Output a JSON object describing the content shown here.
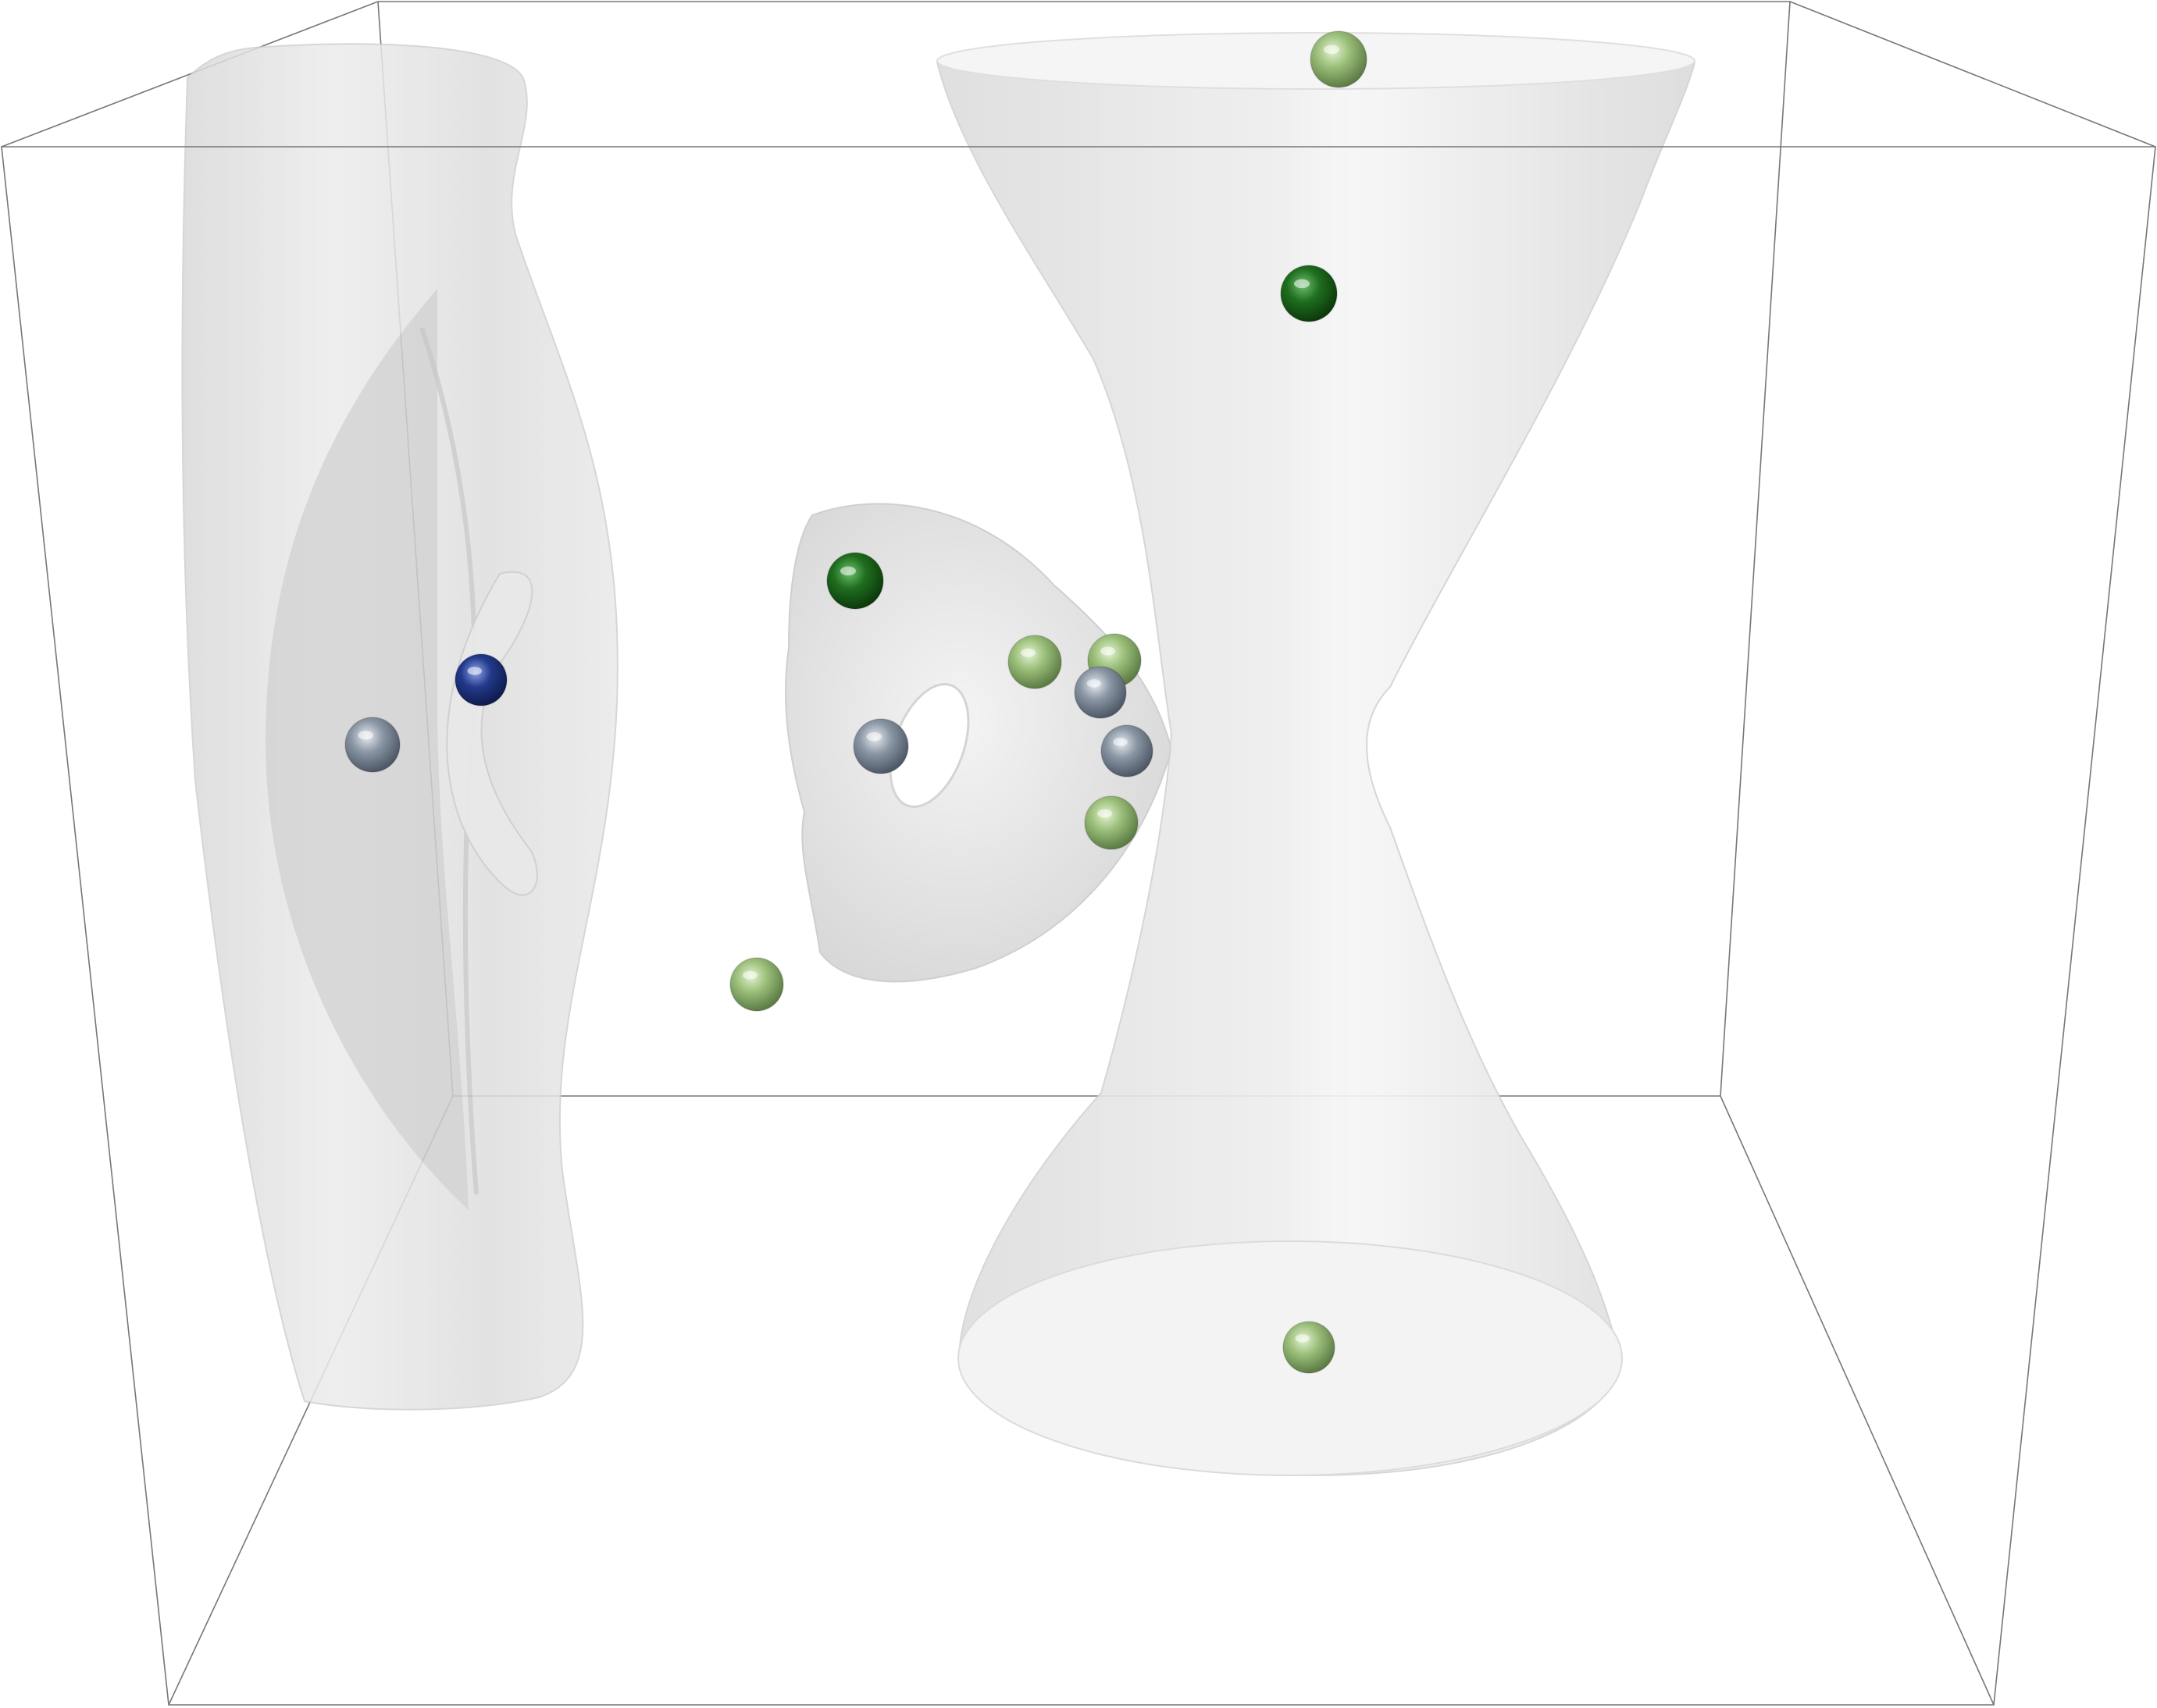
{
  "scene": {
    "kind": "3d-isosurface-render",
    "background": "#ffffff",
    "box_edge_color": "#666666",
    "surface_color": "#e6e6e6",
    "surface_shade": "#cfcfcf",
    "surface_opacity": 0.78,
    "surfaces": [
      {
        "name": "left-elongated-lobe"
      },
      {
        "name": "left-inner-crescent"
      },
      {
        "name": "center-torus"
      },
      {
        "name": "right-hyperboloid-hourglass"
      }
    ],
    "sphere_colors": {
      "dark-green": "#1f6e1f",
      "light-green": "#9bbf7a",
      "gray-blue": "#8a96a4",
      "blue": "#233a8c"
    },
    "spheres": [
      {
        "name": "sphere-top-light-green",
        "color": "light-green"
      },
      {
        "name": "sphere-upper-dark-green",
        "color": "dark-green"
      },
      {
        "name": "sphere-torus-dark-green",
        "color": "dark-green"
      },
      {
        "name": "sphere-mid-light-green-1",
        "color": "light-green"
      },
      {
        "name": "sphere-mid-light-green-2",
        "color": "light-green"
      },
      {
        "name": "sphere-mid-gray-1",
        "color": "gray-blue"
      },
      {
        "name": "sphere-mid-gray-2",
        "color": "gray-blue"
      },
      {
        "name": "sphere-torus-gray",
        "color": "gray-blue"
      },
      {
        "name": "sphere-mid-light-green-3",
        "color": "light-green"
      },
      {
        "name": "sphere-lower-light-green",
        "color": "light-green"
      },
      {
        "name": "sphere-bottom-light-green",
        "color": "light-green"
      },
      {
        "name": "sphere-left-gray",
        "color": "gray-blue"
      },
      {
        "name": "sphere-left-blue",
        "color": "blue"
      }
    ]
  }
}
